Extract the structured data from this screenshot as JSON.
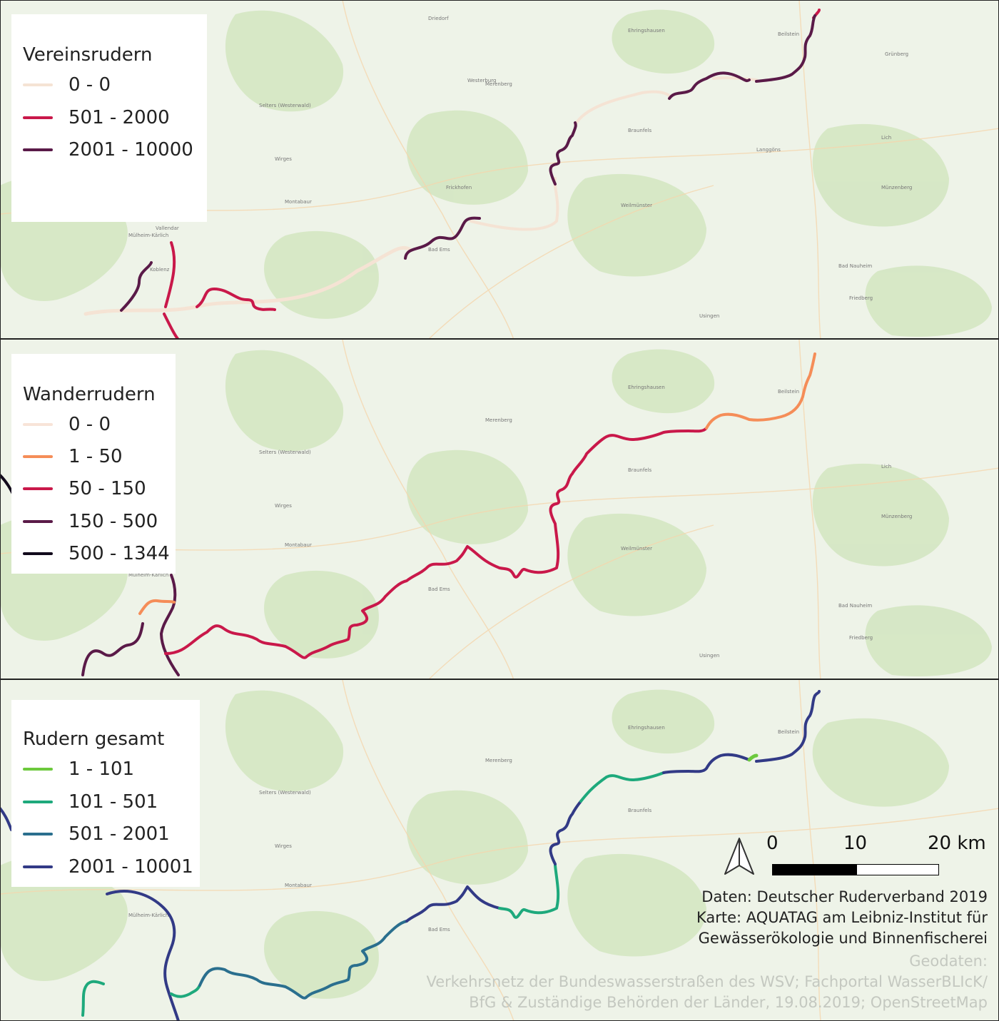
{
  "maps": [
    {
      "legend": {
        "title": "Vereinsrudern",
        "items": [
          {
            "label": "0 - 0",
            "color": "#f5e3d4"
          },
          {
            "label": "501 - 2000",
            "color": "#c9184a"
          },
          {
            "label": "2001 - 10000",
            "color": "#5a1a48"
          }
        ]
      }
    },
    {
      "legend": {
        "title": "Wanderrudern",
        "items": [
          {
            "label": "0 - 0",
            "color": "#f8e4d8"
          },
          {
            "label": "1 - 50",
            "color": "#f58d58"
          },
          {
            "label": "50 - 150",
            "color": "#c9184a"
          },
          {
            "label": "150 - 500",
            "color": "#5a1a48"
          },
          {
            "label": "500 - 1344",
            "color": "#120a1c"
          }
        ]
      }
    },
    {
      "legend": {
        "title": "Rudern gesamt",
        "items": [
          {
            "label": "1 - 101",
            "color": "#6cc93d"
          },
          {
            "label": "101 - 501",
            "color": "#1ea97c"
          },
          {
            "label": "501 - 2001",
            "color": "#2a6f8e"
          },
          {
            "label": "2001 - 10001",
            "color": "#323a86"
          }
        ]
      }
    }
  ],
  "scalebar": {
    "ticks": [
      "0",
      "10",
      "20 km"
    ]
  },
  "north_arrow": {
    "icon": "north-arrow-icon"
  },
  "credits": [
    "Daten: Deutscher Ruderverband 2019",
    "Karte: AQUATAG am Leibniz-Institut für",
    "Gewässerökologie und Binnenfischerei"
  ],
  "geodata": [
    "Geodaten:",
    "Verkehrsnetz der Bundeswasserstraßen des WSV; Fachportal WasserBLIcK/",
    "BfG & Zuständige Behörden der Länder, 19.08.2019; OpenStreetMap"
  ],
  "colors": {
    "base_map": "#eef3e8",
    "forest": "#c9e1b4",
    "road": "#f6d2a2",
    "border": "#222222"
  }
}
